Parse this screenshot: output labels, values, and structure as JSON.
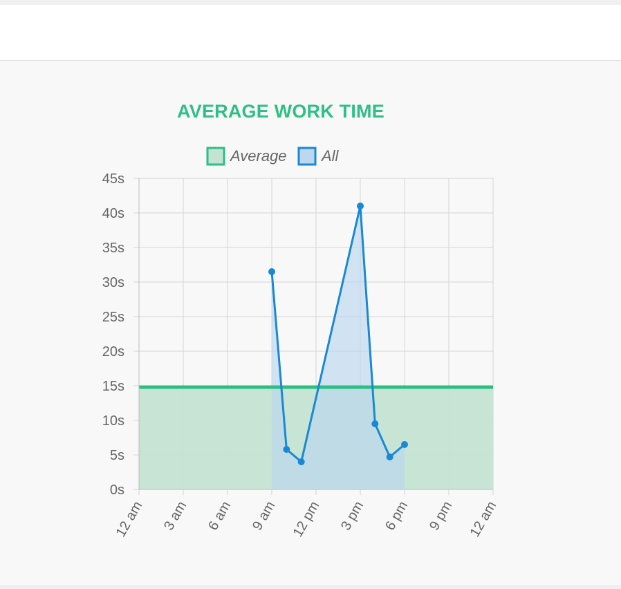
{
  "colors": {
    "accent": "#2fbf86",
    "average_fill": "#c4e3d3",
    "average_line": "#2bbf84",
    "all_line": "#1a88d4",
    "all_fill": "#bcd7ef",
    "grid": "#d4d4d4",
    "text": "#666666"
  },
  "chart_data": {
    "type": "line",
    "title": "AVERAGE WORK TIME",
    "legend": {
      "placement": "top",
      "items": [
        {
          "label": "Average",
          "color": "#2bbf84"
        },
        {
          "label": "All",
          "color": "#1a88d4"
        }
      ]
    },
    "x_ticks": [
      "12 am",
      "3 am",
      "6 am",
      "9 am",
      "12 pm",
      "3 pm",
      "6 pm",
      "9 pm",
      "12 am"
    ],
    "x_range_hours": [
      0,
      24
    ],
    "y_ticks": [
      "0s",
      "5s",
      "10s",
      "15s",
      "20s",
      "25s",
      "30s",
      "35s",
      "40s",
      "45s"
    ],
    "ylim": [
      0,
      45
    ],
    "grid": true,
    "series": [
      {
        "name": "Average",
        "points": [
          [
            0,
            14.8
          ],
          [
            24,
            14.8
          ]
        ]
      },
      {
        "name": "All",
        "points": [
          [
            9,
            31.5
          ],
          [
            10,
            5.8
          ],
          [
            11,
            4
          ],
          [
            15,
            41
          ],
          [
            16,
            9.5
          ],
          [
            17,
            4.7
          ],
          [
            18,
            6.5
          ]
        ]
      }
    ]
  }
}
